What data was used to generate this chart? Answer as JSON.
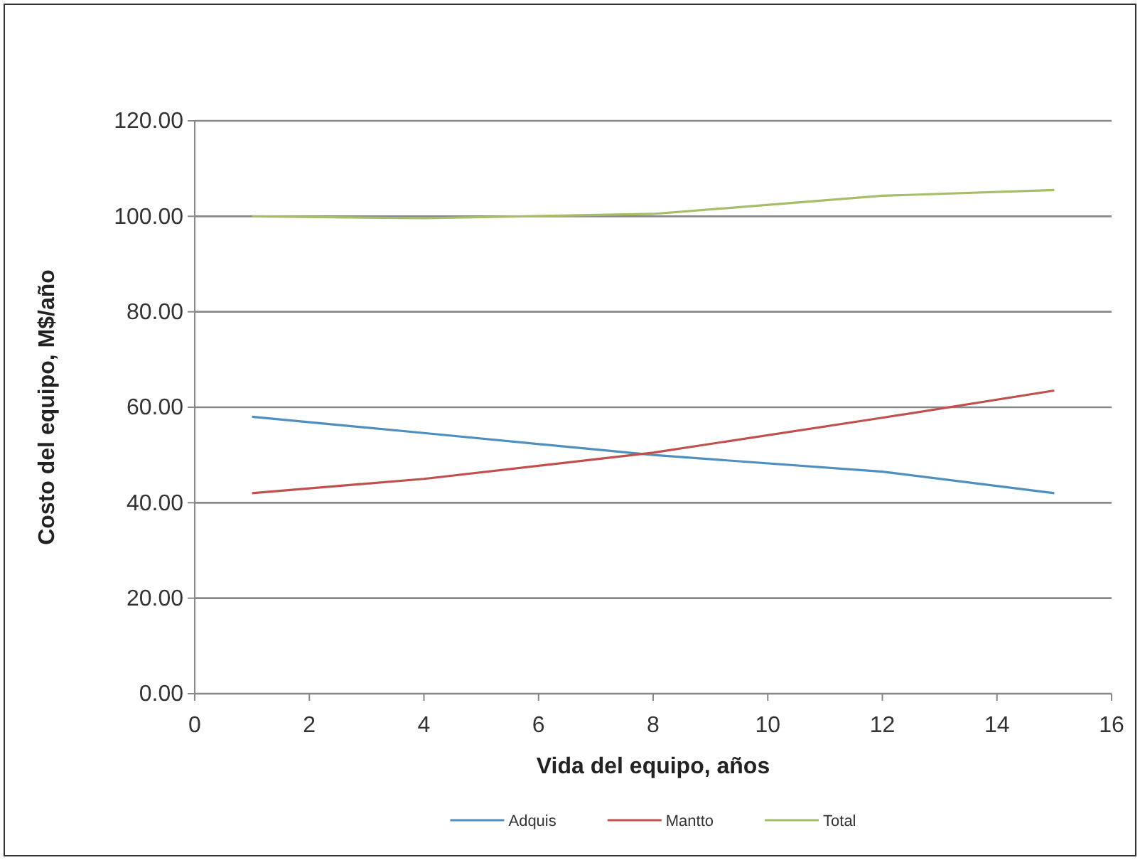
{
  "chart_data": {
    "type": "line",
    "xlabel": "Vida del equipo,  años",
    "ylabel": "Costo del equipo,  M$/año",
    "x": [
      1,
      4,
      8,
      12,
      15
    ],
    "series": [
      {
        "name": "Adquis",
        "color": "#4f8fc0",
        "values": [
          58,
          54.6,
          50,
          46.5,
          42
        ]
      },
      {
        "name": "Mantto",
        "color": "#c0504d",
        "values": [
          42,
          45,
          50.5,
          57.8,
          63.5
        ]
      },
      {
        "name": "Total",
        "color": "#a8bd6a",
        "values": [
          100,
          99.6,
          100.5,
          104.3,
          105.5
        ]
      }
    ],
    "xlim": [
      0,
      16
    ],
    "xticks": [
      0,
      2,
      4,
      6,
      8,
      10,
      12,
      14,
      16
    ],
    "ylim": [
      0,
      120
    ],
    "yticks": [
      {
        "value": 0,
        "label": "0.00"
      },
      {
        "value": 20,
        "label": "20.00"
      },
      {
        "value": 40,
        "label": "40.00"
      },
      {
        "value": 60,
        "label": "60.00"
      },
      {
        "value": 80,
        "label": "80.00"
      },
      {
        "value": 100,
        "label": "100.00"
      },
      {
        "value": 120,
        "label": "120.00"
      }
    ],
    "grid": "y",
    "legend": "bottom",
    "marker": "none",
    "line_style": "solid"
  }
}
